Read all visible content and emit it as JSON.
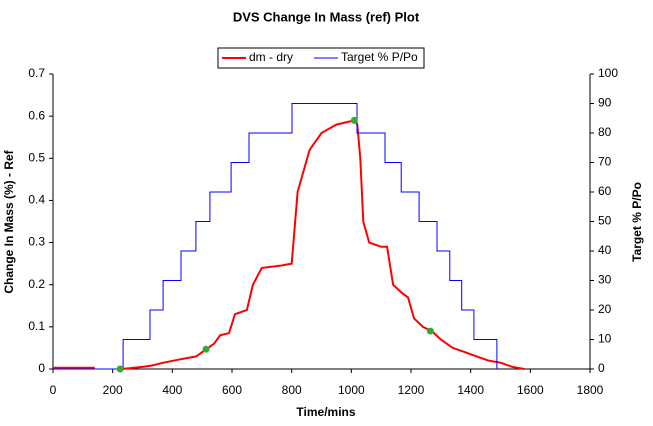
{
  "chart_data": {
    "type": "line",
    "title": "DVS Change In Mass (ref) Plot",
    "x_label": "Time/mins",
    "y_label": "Change In Mass (%) - Ref",
    "y2_label": "Target % P/Po",
    "xlim": [
      0,
      1800
    ],
    "xticks": [
      0,
      200,
      400,
      600,
      800,
      1000,
      1200,
      1400,
      1600,
      1800
    ],
    "ylim": [
      0,
      0.7
    ],
    "yticks": [
      0,
      0.1,
      0.2,
      0.3,
      0.4,
      0.5,
      0.6,
      0.7
    ],
    "y2lim": [
      0,
      100
    ],
    "y2ticks": [
      0,
      10,
      20,
      30,
      40,
      50,
      60,
      70,
      80,
      90,
      100
    ],
    "legend": "top",
    "series": [
      {
        "name": "dm - dry",
        "color": "#ff0000",
        "x": [
          0,
          140,
          180,
          230,
          300,
          330,
          370,
          420,
          480,
          510,
          540,
          560,
          590,
          610,
          650,
          670,
          700,
          760,
          800,
          820,
          860,
          900,
          950,
          1010,
          1020,
          1030,
          1040,
          1060,
          1100,
          1120,
          1140,
          1170,
          1190,
          1210,
          1240,
          1270,
          1300,
          1340,
          1380,
          1420,
          1460,
          1500,
          1540,
          1580
        ],
        "values": [
          0.003,
          0.003,
          null,
          0,
          0.005,
          0.008,
          0.015,
          0.022,
          0.03,
          0.045,
          0.06,
          0.08,
          0.085,
          0.13,
          0.14,
          0.2,
          0.24,
          0.245,
          0.25,
          0.42,
          0.52,
          0.56,
          0.58,
          0.59,
          0.58,
          0.5,
          0.35,
          0.3,
          0.29,
          0.29,
          0.2,
          0.18,
          0.17,
          0.12,
          0.1,
          0.09,
          0.07,
          0.05,
          0.04,
          0.03,
          0.02,
          0.015,
          0.005,
          0
        ]
      },
      {
        "name": "Target % P/Po",
        "color": "#0000ff",
        "axis": "y2",
        "x": [
          0,
          235,
          235,
          325,
          325,
          369,
          369,
          429,
          429,
          479,
          479,
          526,
          526,
          597,
          597,
          657,
          657,
          801,
          801,
          1019,
          1019,
          1113,
          1113,
          1167,
          1167,
          1227,
          1227,
          1287,
          1287,
          1330,
          1330,
          1370,
          1370,
          1411,
          1411,
          1488,
          1488
        ],
        "values": [
          0,
          0,
          10,
          10,
          20,
          20,
          30,
          30,
          40,
          40,
          50,
          50,
          60,
          60,
          70,
          70,
          80,
          80,
          90,
          90,
          80,
          80,
          70,
          70,
          60,
          60,
          50,
          50,
          40,
          40,
          30,
          30,
          20,
          20,
          10,
          10,
          0
        ]
      }
    ],
    "points": {
      "color": "#33aa33",
      "x": [
        225,
        513,
        1010,
        1265
      ],
      "values": [
        0,
        0.047,
        0.59,
        0.09
      ]
    }
  }
}
